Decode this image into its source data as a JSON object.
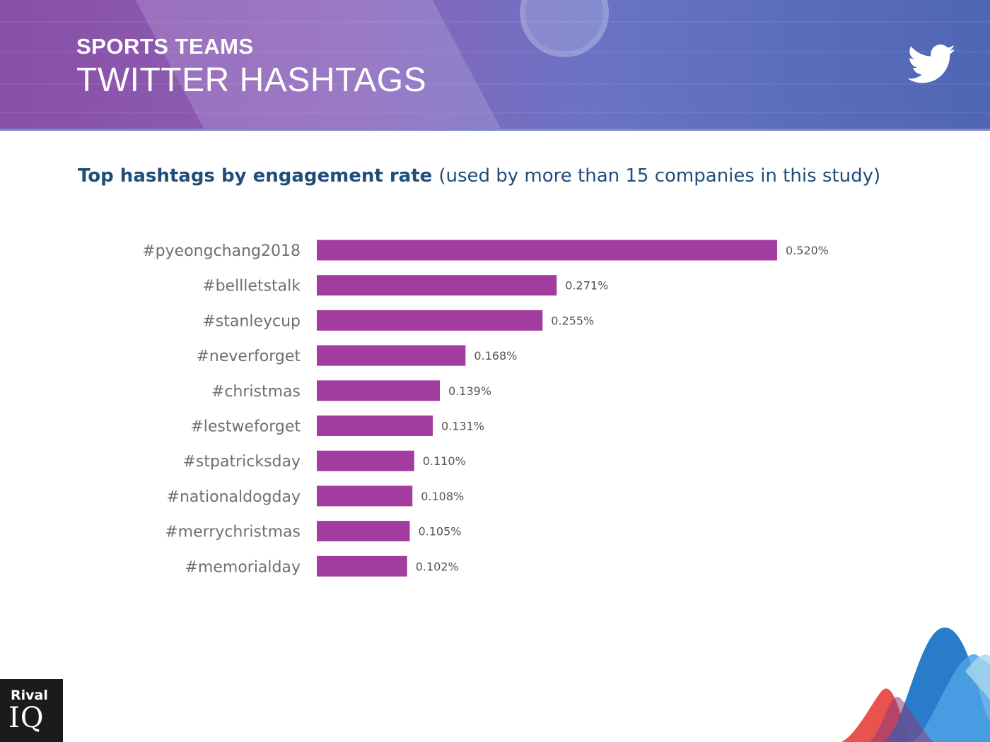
{
  "header": {
    "eyebrow": "SPORTS TEAMS",
    "title": "TWITTER HASHTAGS",
    "icon": "twitter-bird-icon"
  },
  "heading": {
    "bold": "Top hashtags by engagement rate",
    "sub": "(used by more than 15 companies in this study)"
  },
  "chart_data": {
    "type": "bar",
    "orientation": "horizontal",
    "title": "Top hashtags by engagement rate (used by more than 15 companies in this study)",
    "categories": [
      "#pyeongchang2018",
      "#bellletstalk",
      "#stanleycup",
      "#neverforget",
      "#christmas",
      "#lestweforget",
      "#stpatricksday",
      "#nationaldogday",
      "#merrychristmas",
      "#memorialday"
    ],
    "values": [
      0.52,
      0.271,
      0.255,
      0.168,
      0.139,
      0.131,
      0.11,
      0.108,
      0.105,
      0.102
    ],
    "value_labels": [
      "0.520%",
      "0.271%",
      "0.255%",
      "0.168%",
      "0.139%",
      "0.131%",
      "0.110%",
      "0.108%",
      "0.105%",
      "0.102%"
    ],
    "unit": "%",
    "xlim": [
      0,
      0.52
    ],
    "grid": false,
    "legend": "none",
    "bar_color": "#a23c9e"
  },
  "brand": {
    "line1": "Rival",
    "line2": "IQ"
  }
}
